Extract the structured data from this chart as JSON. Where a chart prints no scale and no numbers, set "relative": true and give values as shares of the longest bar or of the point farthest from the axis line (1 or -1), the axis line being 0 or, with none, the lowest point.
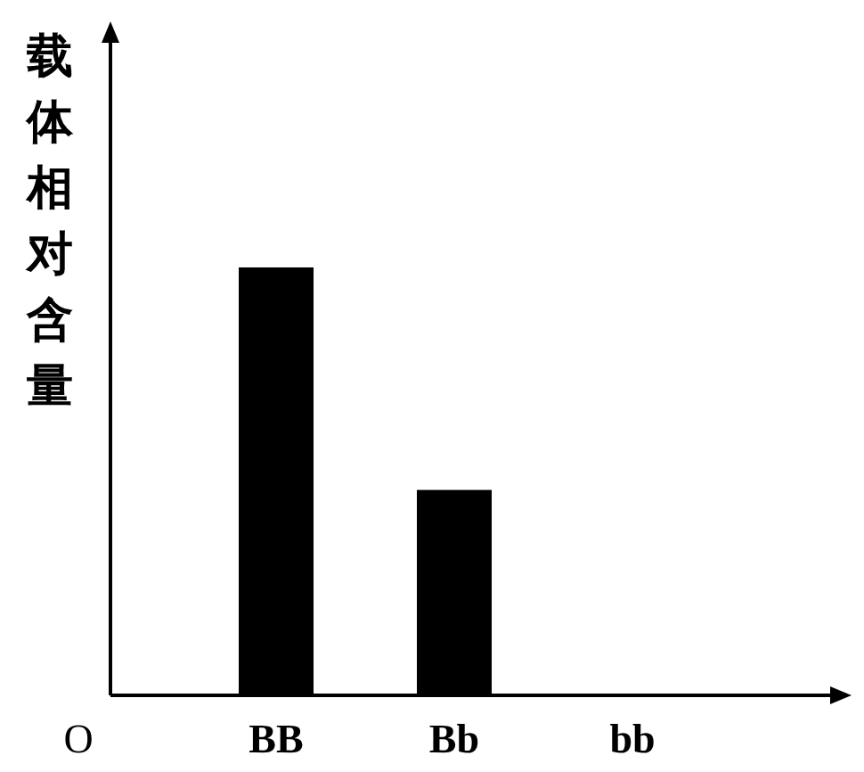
{
  "chart_data": {
    "type": "bar",
    "ylabel": "载体相对含量",
    "categories": [
      "BB",
      "Bb",
      "bb"
    ],
    "values": [
      1,
      0.48,
      0
    ],
    "color": "#000000",
    "relative": true,
    "annotations": [
      "O"
    ]
  }
}
